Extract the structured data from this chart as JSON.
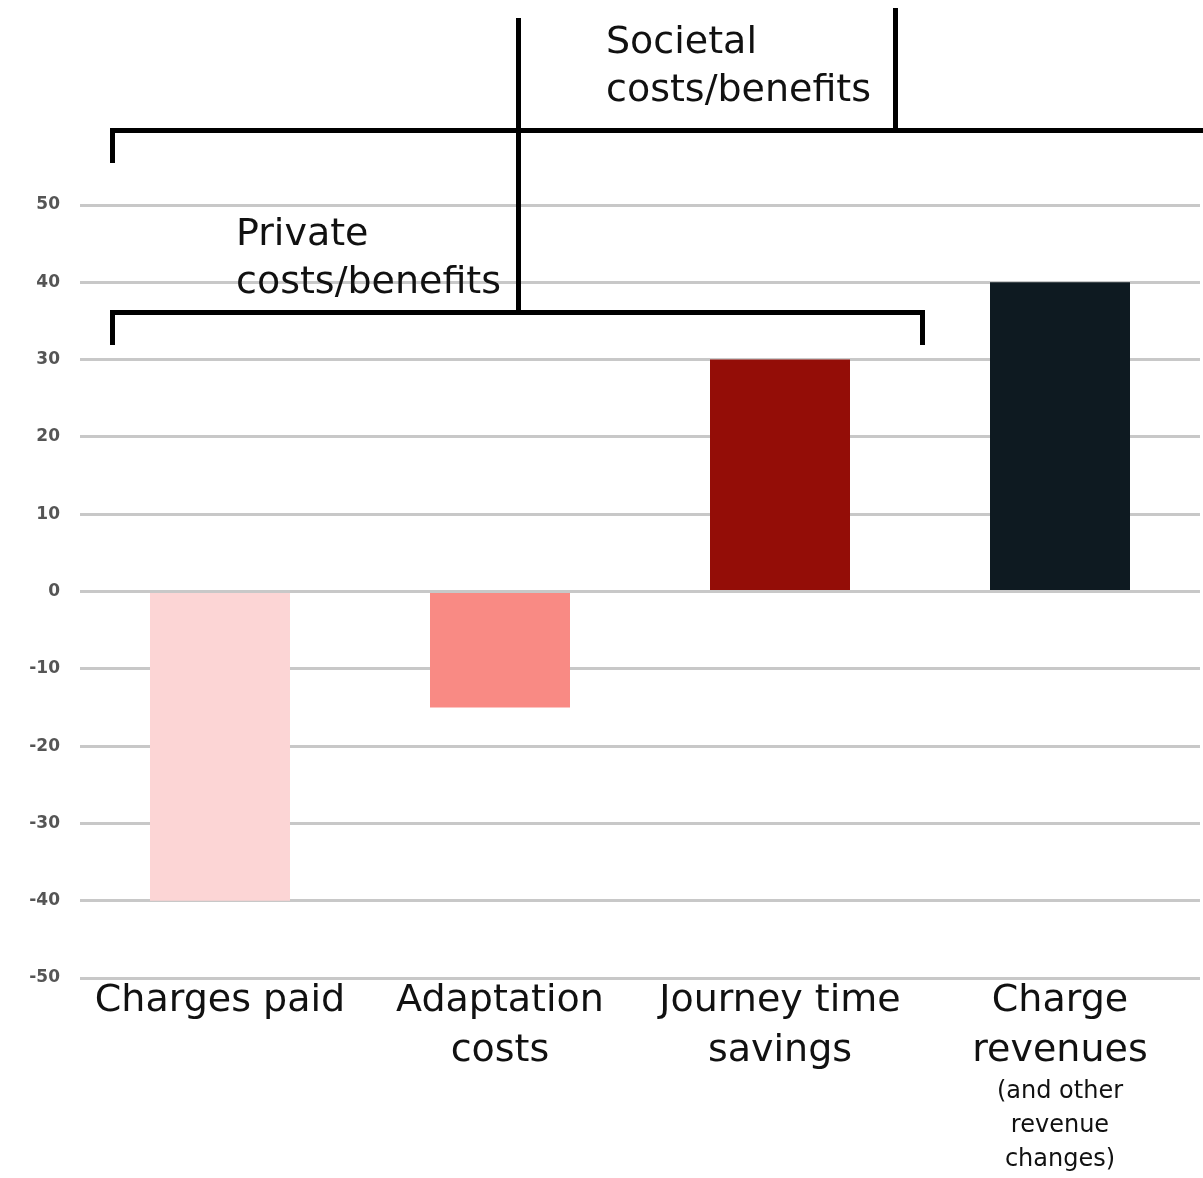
{
  "chart_data": {
    "type": "bar",
    "categories": [
      "Charges paid",
      "Adaptation costs",
      "Journey time savings",
      "Charge revenues (and other revenue changes)"
    ],
    "values": [
      -40,
      -15,
      30,
      40
    ],
    "colors": [
      "#fcd5d5",
      "#f98a84",
      "#940d07",
      "#0e1a21"
    ],
    "ylim": [
      -50,
      50
    ],
    "yticks": [
      -50,
      -40,
      -30,
      -20,
      -10,
      0,
      10,
      20,
      30,
      40,
      50
    ],
    "grid": "y",
    "legend": false,
    "annotations": [
      "Societal costs/benefits",
      "Private costs/benefits"
    ]
  }
}
